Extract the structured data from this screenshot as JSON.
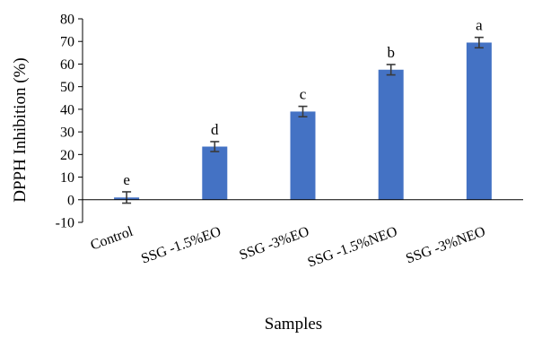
{
  "chart_data": {
    "type": "bar",
    "title": "",
    "xlabel": "Samples",
    "ylabel": "DPPH Inhibition (%)",
    "ylim": [
      -10,
      80
    ],
    "ytick_step": 10,
    "grid": false,
    "legend": "none",
    "bar_color": "#4472C4",
    "errorbar_color": "#3a3a3a",
    "categories": [
      "Control",
      "SSG -1.5%EO",
      "SSG -3%EO",
      "SSG -1.5%NEO",
      "SSG -3%NEO"
    ],
    "values": [
      1,
      23.5,
      39,
      57.5,
      69.5
    ],
    "errors": [
      2.5,
      2.2,
      2.3,
      2.3,
      2.3
    ],
    "significance_letters": [
      "e",
      "d",
      "c",
      "b",
      "a"
    ]
  }
}
